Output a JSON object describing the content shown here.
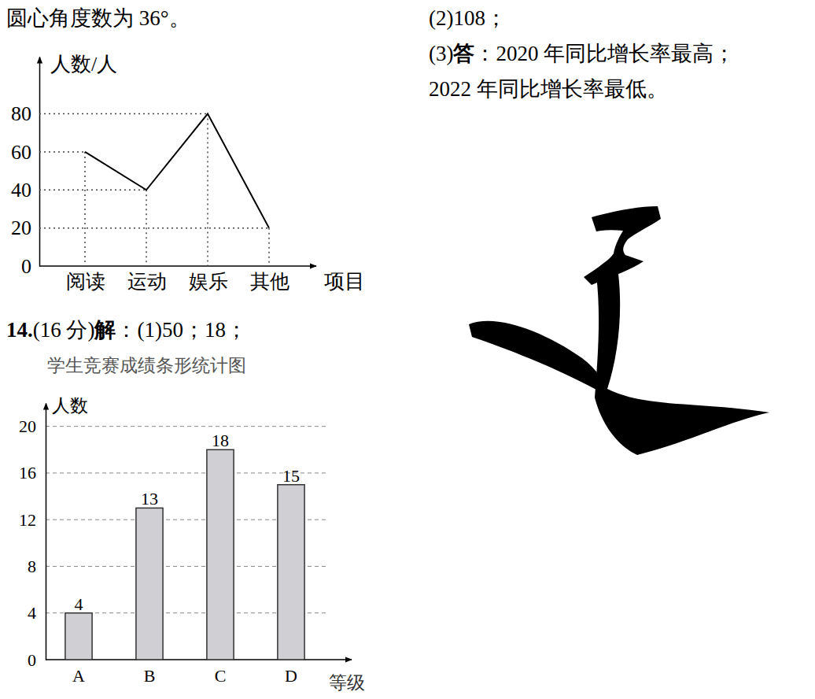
{
  "document": {
    "left_top_text": "圆心角度数为 36°。",
    "question_14": {
      "number": "14.",
      "score": "(16 分)",
      "solve": "解",
      "answer_1": "：(1)50；18；"
    },
    "right_line_1": "(2)108；",
    "right_line_2": {
      "prefix": "(3)",
      "bold": "答",
      "rest": "：2020 年同比增长率最高；"
    },
    "right_line_3": "2022 年同比增长率最低。"
  },
  "chart_data": [
    {
      "type": "line",
      "y_label": "人数/人",
      "x_label": "项目",
      "categories": [
        "阅读",
        "运动",
        "娱乐",
        "其他"
      ],
      "values": [
        60,
        40,
        80,
        20
      ],
      "color": "#000000",
      "ylim": [
        0,
        110
      ],
      "yticks": [
        0,
        20,
        40,
        60,
        80
      ]
    },
    {
      "type": "bar",
      "title": "学生竞赛成绩条形统计图",
      "y_label": "人数",
      "x_label": "等级",
      "categories": [
        "A",
        "B",
        "C",
        "D"
      ],
      "values": [
        4,
        13,
        18,
        15
      ],
      "color": "#cfcfd4",
      "ylim": [
        0,
        22
      ],
      "yticks": [
        0,
        4,
        8,
        12,
        16,
        20
      ],
      "grid": true,
      "data_labels": true
    }
  ]
}
